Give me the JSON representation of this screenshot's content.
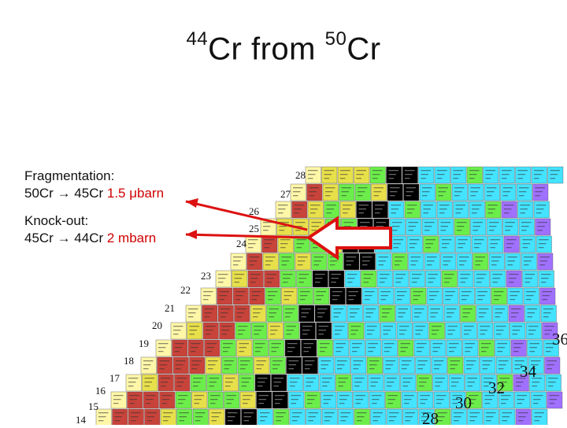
{
  "title": {
    "mass_a": "44",
    "element_a": "Cr",
    "word": "from",
    "mass_b": "50",
    "element_b": "Cr"
  },
  "notes": [
    {
      "heading": "Fragmentation:",
      "reaction": "50Cr  → 45Cr",
      "value": "1.5 μbarn"
    },
    {
      "heading": "Knock-out:",
      "reaction": "45Cr  → 44Cr",
      "value": "2 mbarn"
    }
  ],
  "chart_labels": {
    "row_numbers": [
      "28",
      "27",
      "26",
      "25",
      "24",
      "23",
      "22",
      "21",
      "20",
      "19",
      "18",
      "17",
      "16",
      "15",
      "14"
    ],
    "column_numbers": [
      "36",
      "34",
      "32",
      "30",
      "28"
    ]
  },
  "colors": {
    "arrow_red": "#dd1111",
    "stable": "#000000",
    "beta_minus": "#44e3ff",
    "beta_plus": "#6cee4a",
    "proton_emitter": "#e8e04a",
    "proton_drip": "#c8433a",
    "alpha": "#fff7a8",
    "isomer": "#a070ff"
  }
}
